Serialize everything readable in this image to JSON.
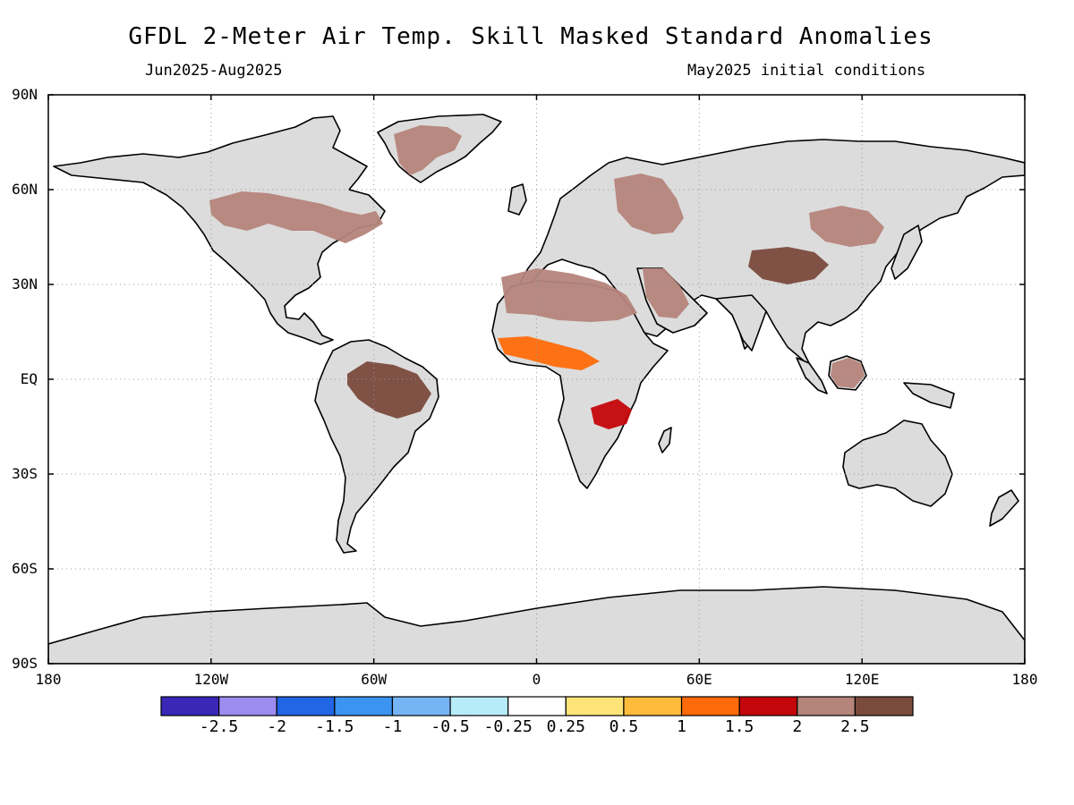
{
  "header": {
    "title": "GFDL 2-Meter Air Temp. Skill Masked Standard Anomalies",
    "period": "Jun2025-Aug2025",
    "init": "May2025 initial conditions"
  },
  "map": {
    "lat_labels": [
      {
        "lat": 90,
        "text": "90N"
      },
      {
        "lat": 60,
        "text": "60N"
      },
      {
        "lat": 30,
        "text": "30N"
      },
      {
        "lat": 0,
        "text": "EQ"
      },
      {
        "lat": -30,
        "text": "30S"
      },
      {
        "lat": -60,
        "text": "60S"
      },
      {
        "lat": -90,
        "text": "90S"
      }
    ],
    "lon_labels": [
      {
        "lon": -180,
        "text": "180"
      },
      {
        "lon": -120,
        "text": "120W"
      },
      {
        "lon": -60,
        "text": "60W"
      },
      {
        "lon": 0,
        "text": "0"
      },
      {
        "lon": 60,
        "text": "60E"
      },
      {
        "lon": 120,
        "text": "120E"
      },
      {
        "lon": 180,
        "text": "180"
      }
    ],
    "land_color": "#dcdcdc",
    "ocean_color": "#ffffff",
    "anomaly_regions": [
      {
        "name": "Canada / Hudson",
        "level": 2
      },
      {
        "name": "Greenland",
        "level": 2
      },
      {
        "name": "Amazon",
        "level": 2.5
      },
      {
        "name": "Sahara",
        "level": 2
      },
      {
        "name": "Sahel",
        "level": 1
      },
      {
        "name": "Arabia",
        "level": 2
      },
      {
        "name": "Eastern Europe",
        "level": 2
      },
      {
        "name": "Mongolia / N. China",
        "level": 2
      },
      {
        "name": "Tibet",
        "level": 2.5
      },
      {
        "name": "Borneo",
        "level": 2
      },
      {
        "name": "East Africa",
        "level": 1.5
      }
    ]
  },
  "colorbar": {
    "colors": [
      "#3a27b8",
      "#9c8cf0",
      "#2266e6",
      "#3b93f2",
      "#76b5f5",
      "#b6ecf8",
      "#ffffff",
      "#ffe47a",
      "#ffbc3c",
      "#ff6a0a",
      "#c4060a",
      "#b5847a",
      "#7a4a3c"
    ],
    "labels": [
      "-2.5",
      "-2",
      "-1.5",
      "-1",
      "-0.5",
      "-0.25",
      "0.25",
      "0.5",
      "1",
      "1.5",
      "2",
      "2.5"
    ]
  }
}
